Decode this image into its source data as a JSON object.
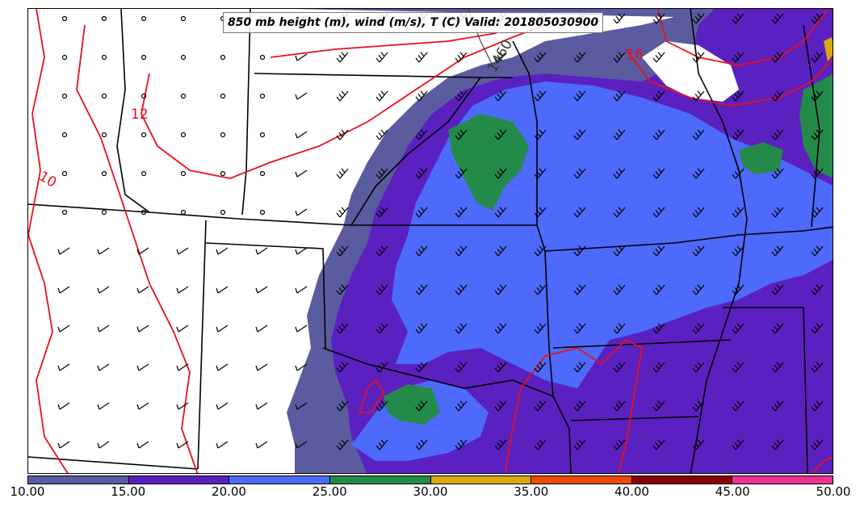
{
  "title": "850 mb height (m), wind (m/s), T (C) Valid: 201805030900",
  "contour_labels": {
    "height_1": "1460",
    "temp_16": "16",
    "temp_12": "12",
    "temp_10": "10"
  },
  "legend": {
    "colors": [
      "#5b5b9f",
      "#5a21c0",
      "#4d6afa",
      "#238a4a",
      "#d8a90c",
      "#ec4b04",
      "#8a0000",
      "#ee3293"
    ],
    "ticks": [
      "10.00",
      "15.00",
      "20.00",
      "25.00",
      "30.00",
      "35.00",
      "40.00",
      "45.00",
      "50.00"
    ]
  }
}
